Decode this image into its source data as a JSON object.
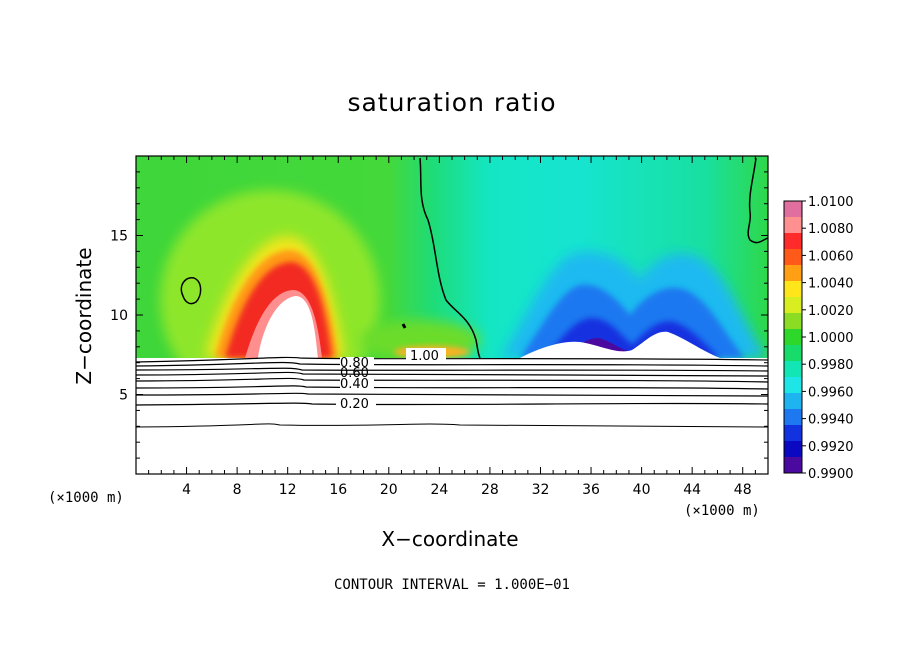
{
  "chart_data": {
    "type": "heatmap",
    "title": "saturation ratio",
    "xlabel": "X−coordinate",
    "ylabel": "Z−coordinate",
    "x_unit_left": "(×1000 m)",
    "x_unit_right": "(×1000 m)",
    "xlim": [
      0,
      50
    ],
    "ylim": [
      0,
      20
    ],
    "x_ticks": [
      4,
      8,
      12,
      16,
      20,
      24,
      28,
      32,
      36,
      40,
      44,
      48
    ],
    "x_tick_labels": [
      "4",
      "8",
      "12",
      "16",
      "20",
      "24",
      "28",
      "32",
      "36",
      "40",
      "44",
      "48"
    ],
    "y_ticks": [
      5,
      10,
      15
    ],
    "y_tick_labels": [
      "5",
      "10",
      "15"
    ],
    "colorbar": {
      "min": 0.99,
      "max": 1.01,
      "labels": [
        "1.0100",
        "1.0080",
        "1.0060",
        "1.0040",
        "1.0020",
        "1.0000",
        "0.9980",
        "0.9960",
        "0.9940",
        "0.9920",
        "0.9900"
      ],
      "colors": [
        "#e06fa0",
        "#ff9090",
        "#ff2a2a",
        "#ff5a1a",
        "#ffa014",
        "#ffe61a",
        "#d8ee20",
        "#8cdc24",
        "#2ed82a",
        "#18dc6a",
        "#12e6b4",
        "#1ee6e6",
        "#1eb4f0",
        "#1e78f0",
        "#1232e0",
        "#0a08c0",
        "#4a0aa0"
      ]
    },
    "contour_labels": [
      "0.80",
      "0.60",
      "0.40",
      "0.20",
      "1.00"
    ],
    "contour_interval_text": "CONTOUR INTERVAL = 1.000E−01",
    "features": {
      "supersaturated_plume_center_x": 12,
      "subsaturated_region_x": [
        28,
        50
      ],
      "unsaturated_layer_top_z": 7.3
    }
  }
}
